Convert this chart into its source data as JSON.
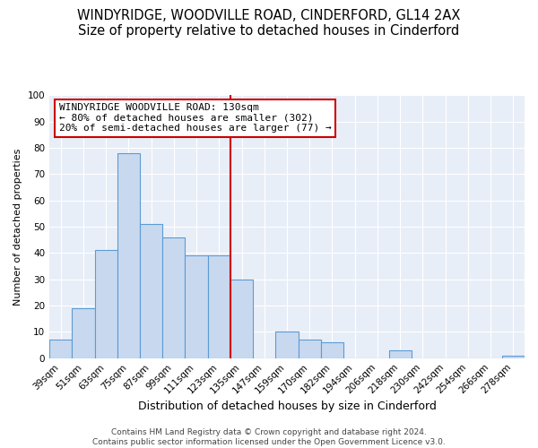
{
  "title": "WINDYRIDGE, WOODVILLE ROAD, CINDERFORD, GL14 2AX",
  "subtitle": "Size of property relative to detached houses in Cinderford",
  "xlabel": "Distribution of detached houses by size in Cinderford",
  "ylabel": "Number of detached properties",
  "bar_labels": [
    "39sqm",
    "51sqm",
    "63sqm",
    "75sqm",
    "87sqm",
    "99sqm",
    "111sqm",
    "123sqm",
    "135sqm",
    "147sqm",
    "159sqm",
    "170sqm",
    "182sqm",
    "194sqm",
    "206sqm",
    "218sqm",
    "230sqm",
    "242sqm",
    "254sqm",
    "266sqm",
    "278sqm"
  ],
  "bar_values": [
    7,
    19,
    41,
    78,
    51,
    46,
    39,
    39,
    30,
    0,
    10,
    7,
    6,
    0,
    0,
    3,
    0,
    0,
    0,
    0,
    1
  ],
  "bar_color": "#c8d9ef",
  "bar_edge_color": "#5b9bd5",
  "vline_x_index": 7.5,
  "vline_color": "#cc0000",
  "bg_color": "#e8eef7",
  "ylim": [
    0,
    100
  ],
  "yticks": [
    0,
    10,
    20,
    30,
    40,
    50,
    60,
    70,
    80,
    90,
    100
  ],
  "annotation_title": "WINDYRIDGE WOODVILLE ROAD: 130sqm",
  "annotation_line1": "← 80% of detached houses are smaller (302)",
  "annotation_line2": "20% of semi-detached houses are larger (77) →",
  "annotation_box_color": "#cc0000",
  "footer_line1": "Contains HM Land Registry data © Crown copyright and database right 2024.",
  "footer_line2": "Contains public sector information licensed under the Open Government Licence v3.0.",
  "title_fontsize": 10.5,
  "subtitle_fontsize": 9.5,
  "xlabel_fontsize": 9,
  "ylabel_fontsize": 8,
  "tick_fontsize": 7.5,
  "annotation_fontsize": 8,
  "footer_fontsize": 6.5
}
